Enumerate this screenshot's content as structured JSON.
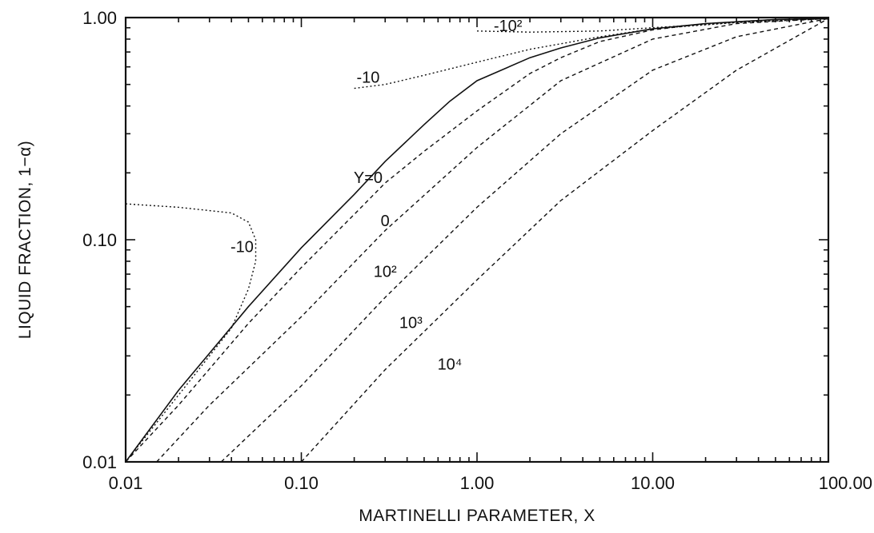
{
  "chart_data": {
    "type": "line",
    "xlabel": "MARTINELLI PARAMETER, X",
    "ylabel": "LIQUID FRACTION,  1−α)",
    "x_scale": "log",
    "y_scale": "log",
    "xlim": [
      0.01,
      100
    ],
    "ylim": [
      0.01,
      1
    ],
    "grid": false,
    "x_tick_labels": [
      "0.01",
      "0.10",
      "1.00",
      "10.00",
      "100.00"
    ],
    "y_tick_labels": [
      "0.01",
      "0.10",
      "1.00"
    ],
    "series": [
      {
        "name": "Y=0",
        "style": "solid",
        "points": [
          [
            0.01,
            0.01
          ],
          [
            0.02,
            0.021
          ],
          [
            0.05,
            0.05
          ],
          [
            0.1,
            0.092
          ],
          [
            0.2,
            0.16
          ],
          [
            0.3,
            0.225
          ],
          [
            0.5,
            0.33
          ],
          [
            0.7,
            0.42
          ],
          [
            1.0,
            0.52
          ],
          [
            2.0,
            0.66
          ],
          [
            3.0,
            0.73
          ],
          [
            5.0,
            0.81
          ],
          [
            10.0,
            0.89
          ],
          [
            20.0,
            0.94
          ],
          [
            50.0,
            0.98
          ],
          [
            100.0,
            0.99
          ]
        ]
      },
      {
        "name": "0",
        "style": "dashed",
        "points": [
          [
            0.01,
            0.01
          ],
          [
            0.02,
            0.018
          ],
          [
            0.05,
            0.042
          ],
          [
            0.1,
            0.075
          ],
          [
            0.2,
            0.13
          ],
          [
            0.3,
            0.18
          ],
          [
            0.5,
            0.25
          ],
          [
            1.0,
            0.38
          ],
          [
            2.0,
            0.56
          ],
          [
            3.0,
            0.66
          ],
          [
            5.0,
            0.78
          ],
          [
            10.0,
            0.88
          ],
          [
            20.0,
            0.94
          ],
          [
            50.0,
            0.98
          ],
          [
            100.0,
            0.99
          ]
        ]
      },
      {
        "name": "10²",
        "style": "dashed",
        "points": [
          [
            0.015,
            0.01
          ],
          [
            0.03,
            0.018
          ],
          [
            0.1,
            0.045
          ],
          [
            0.3,
            0.11
          ],
          [
            1.0,
            0.26
          ],
          [
            3.0,
            0.52
          ],
          [
            10.0,
            0.8
          ],
          [
            30.0,
            0.94
          ],
          [
            100.0,
            0.99
          ]
        ]
      },
      {
        "name": "10³",
        "style": "dashed",
        "points": [
          [
            0.035,
            0.01
          ],
          [
            0.1,
            0.022
          ],
          [
            0.3,
            0.055
          ],
          [
            1.0,
            0.14
          ],
          [
            3.0,
            0.3
          ],
          [
            10.0,
            0.58
          ],
          [
            30.0,
            0.82
          ],
          [
            100.0,
            0.99
          ]
        ]
      },
      {
        "name": "10⁴",
        "style": "dashed",
        "points": [
          [
            0.1,
            0.01
          ],
          [
            0.3,
            0.026
          ],
          [
            1.0,
            0.066
          ],
          [
            3.0,
            0.15
          ],
          [
            10.0,
            0.31
          ],
          [
            30.0,
            0.58
          ],
          [
            100.0,
            0.99
          ]
        ]
      },
      {
        "name": "-10",
        "style": "dotted",
        "points": [
          [
            0.01,
            0.145
          ],
          [
            0.02,
            0.14
          ],
          [
            0.04,
            0.132
          ],
          [
            0.05,
            0.12
          ],
          [
            0.055,
            0.1
          ],
          [
            0.055,
            0.08
          ],
          [
            0.05,
            0.06
          ],
          [
            0.04,
            0.04
          ],
          [
            0.02,
            0.02
          ],
          [
            0.01,
            0.01
          ]
        ]
      },
      {
        "name": "-10",
        "style": "dotted",
        "points": [
          [
            0.2,
            0.48
          ],
          [
            0.3,
            0.5
          ],
          [
            0.5,
            0.55
          ],
          [
            1.0,
            0.63
          ],
          [
            2.0,
            0.72
          ],
          [
            5.0,
            0.82
          ],
          [
            10.0,
            0.89
          ],
          [
            30.0,
            0.95
          ],
          [
            100.0,
            0.99
          ]
        ]
      },
      {
        "name": "-10²",
        "style": "dotted",
        "points": [
          [
            1.0,
            0.87
          ],
          [
            2.0,
            0.86
          ],
          [
            5.0,
            0.87
          ],
          [
            10.0,
            0.9
          ],
          [
            30.0,
            0.95
          ],
          [
            100.0,
            0.99
          ]
        ]
      }
    ],
    "labels": [
      {
        "text": "Y=0",
        "x": 0.24,
        "y": 0.18
      },
      {
        "text": "0",
        "x": 0.3,
        "y": 0.115
      },
      {
        "text": "-10",
        "x": 0.046,
        "y": 0.088
      },
      {
        "text": "-10",
        "x": 0.24,
        "y": 0.51
      },
      {
        "text": "-10²",
        "x": 1.5,
        "y": 0.87
      },
      {
        "text": "10²",
        "x": 0.3,
        "y": 0.068
      },
      {
        "text": "10³",
        "x": 0.42,
        "y": 0.04
      },
      {
        "text": "10⁴",
        "x": 0.7,
        "y": 0.026
      }
    ]
  }
}
